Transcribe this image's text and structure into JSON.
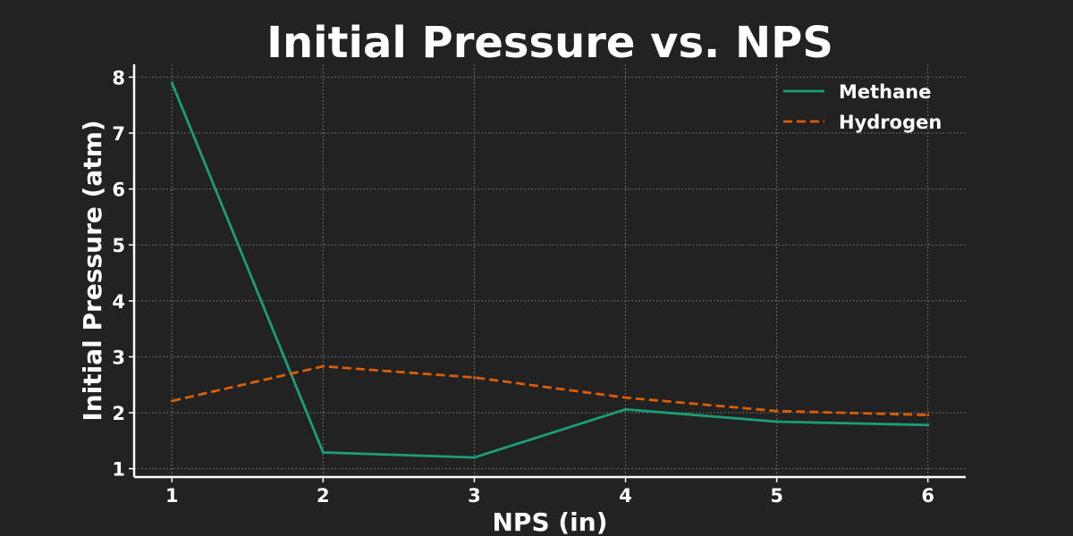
{
  "chart_data": {
    "type": "line",
    "title": "Initial Pressure vs. NPS",
    "xlabel": "NPS (in)",
    "ylabel": "Initial Pressure (atm)",
    "x": [
      1,
      2,
      3,
      4,
      5,
      6
    ],
    "xlim": [
      0.75,
      6.25
    ],
    "ylim": [
      0.85,
      8.23
    ],
    "xticks": [
      1,
      2,
      3,
      4,
      5,
      6
    ],
    "yticks": [
      1,
      2,
      3,
      4,
      5,
      6,
      7,
      8
    ],
    "grid": true,
    "legend_position": "top-right",
    "series": [
      {
        "name": "Methane",
        "color": "#1b9e77",
        "line_style": "solid",
        "values": [
          7.9,
          1.29,
          1.2,
          2.06,
          1.84,
          1.78
        ]
      },
      {
        "name": "Hydrogen",
        "color": "#d95f02",
        "line_style": "dashed",
        "values": [
          2.21,
          2.83,
          2.63,
          2.27,
          2.03,
          1.96
        ]
      }
    ]
  }
}
